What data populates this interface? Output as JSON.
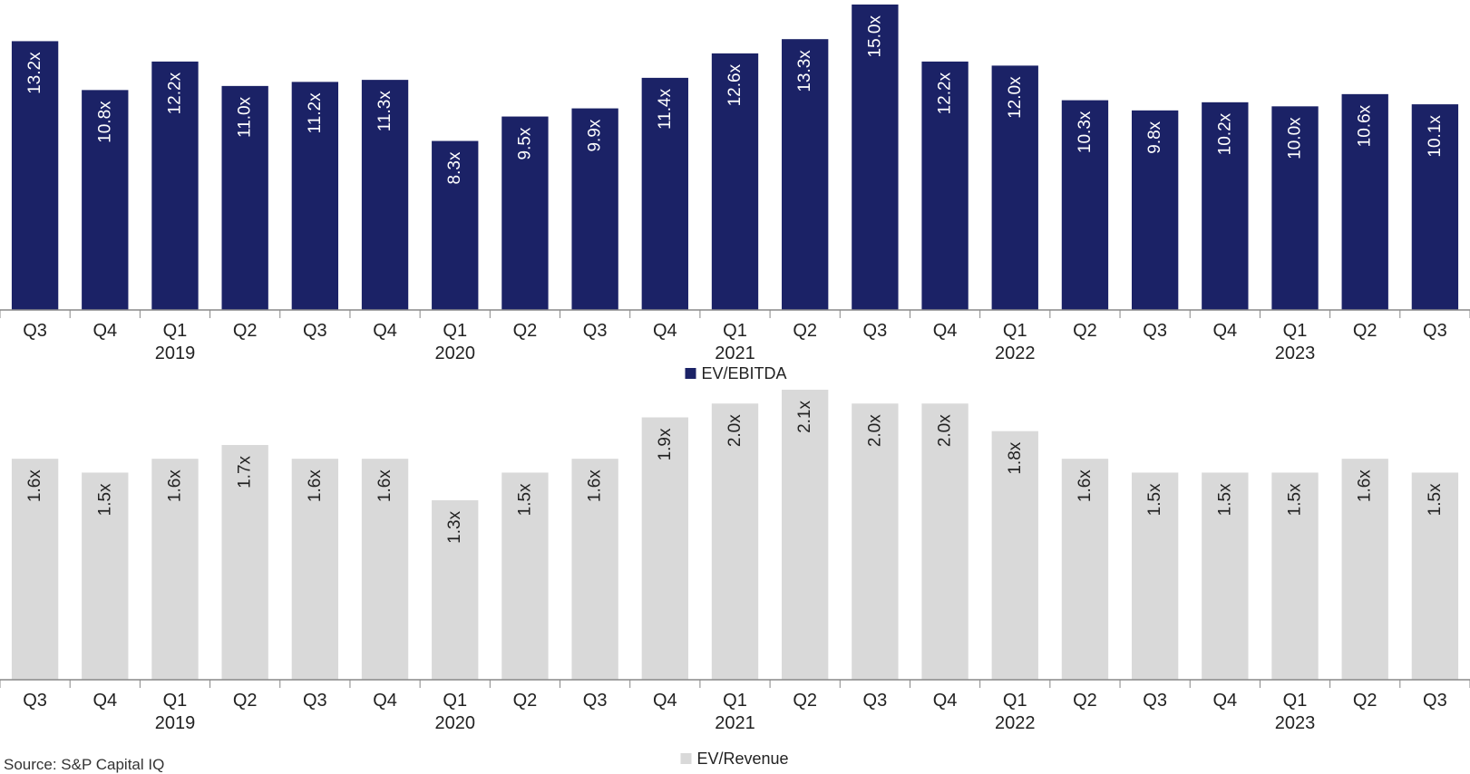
{
  "charts": [
    {
      "type": "bar",
      "categories": [
        "Q3",
        "Q4",
        "Q1",
        "Q2",
        "Q3",
        "Q4",
        "Q1",
        "Q2",
        "Q3",
        "Q4",
        "Q1",
        "Q2",
        "Q3",
        "Q4",
        "Q1",
        "Q2",
        "Q3",
        "Q4",
        "Q1",
        "Q2",
        "Q3"
      ],
      "year_labels": [
        "",
        "",
        "2019",
        "",
        "",
        "",
        "2020",
        "",
        "",
        "",
        "2021",
        "",
        "",
        "",
        "2022",
        "",
        "",
        "",
        "2023",
        "",
        ""
      ],
      "series": [
        {
          "name": "EV/EBITDA",
          "color": "#1b2266",
          "label_color": "#ffffff",
          "values": [
            13.2,
            10.8,
            12.2,
            11.0,
            11.2,
            11.3,
            8.3,
            9.5,
            9.9,
            11.4,
            12.6,
            13.3,
            15.0,
            12.2,
            12.0,
            10.3,
            9.8,
            10.2,
            10.0,
            10.6,
            10.1
          ],
          "data_labels": [
            "13.2x",
            "10.8x",
            "12.2x",
            "11.0x",
            "11.2x",
            "11.3x",
            "8.3x",
            "9.5x",
            "9.9x",
            "11.4x",
            "12.6x",
            "13.3x",
            "15.0x",
            "12.2x",
            "12.0x",
            "10.3x",
            "9.8x",
            "10.2x",
            "10.0x",
            "10.6x",
            "10.1x"
          ]
        }
      ],
      "ylim": [
        0,
        15
      ],
      "legend": "bottom-center"
    },
    {
      "type": "bar",
      "categories": [
        "Q3",
        "Q4",
        "Q1",
        "Q2",
        "Q3",
        "Q4",
        "Q1",
        "Q2",
        "Q3",
        "Q4",
        "Q1",
        "Q2",
        "Q3",
        "Q4",
        "Q1",
        "Q2",
        "Q3",
        "Q4",
        "Q1",
        "Q2",
        "Q3"
      ],
      "year_labels": [
        "",
        "",
        "2019",
        "",
        "",
        "",
        "2020",
        "",
        "",
        "",
        "2021",
        "",
        "",
        "",
        "2022",
        "",
        "",
        "",
        "2023",
        "",
        ""
      ],
      "series": [
        {
          "name": "EV/Revenue",
          "color": "#d9d9d9",
          "label_color": "#222222",
          "values": [
            1.6,
            1.5,
            1.6,
            1.7,
            1.6,
            1.6,
            1.3,
            1.5,
            1.6,
            1.9,
            2.0,
            2.1,
            2.0,
            2.0,
            1.8,
            1.6,
            1.5,
            1.5,
            1.5,
            1.6,
            1.5
          ],
          "data_labels": [
            "1.6x",
            "1.5x",
            "1.6x",
            "1.7x",
            "1.6x",
            "1.6x",
            "1.3x",
            "1.5x",
            "1.6x",
            "1.9x",
            "2.0x",
            "2.1x",
            "2.0x",
            "2.0x",
            "1.8x",
            "1.6x",
            "1.5x",
            "1.5x",
            "1.5x",
            "1.6x",
            "1.5x"
          ]
        }
      ],
      "ylim": [
        0,
        2.1
      ],
      "legend": "bottom-center"
    }
  ],
  "source": "Source: S&P Capital IQ"
}
